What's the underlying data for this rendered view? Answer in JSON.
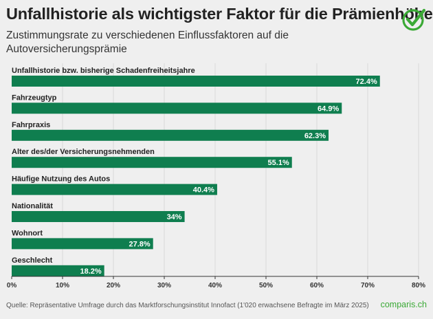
{
  "header": {
    "title": "Unfallhistorie als wichtigster Faktor für die Prämienhöhe",
    "subtitle": "Zustimmungsrate zu verschiedenen Einflussfaktoren auf die Autoversicherungsprämie"
  },
  "footer": {
    "source": "Quelle: Repräsentative Umfrage durch das Marktforschungsinstitut Innofact (1'020 erwachsene Befragte im März 2025)",
    "brand": "comparis.ch"
  },
  "colors": {
    "bar": "#0f7e4f",
    "accent": "#3aa935",
    "background": "#efefef"
  },
  "logo_icon": "checkmark-circle-icon",
  "chart_data": {
    "type": "bar",
    "orientation": "horizontal",
    "categories": [
      "Unfallhistorie bzw. bisherige Schadenfreiheitsjahre",
      "Fahrzeugtyp",
      "Fahrpraxis",
      "Alter des/der Versicherungsnehmenden",
      "Häufige Nutzung des Autos",
      "Nationalität",
      "Wohnort",
      "Geschlecht"
    ],
    "values": [
      72.4,
      64.9,
      62.3,
      55.1,
      40.4,
      34,
      27.8,
      18.2
    ],
    "value_labels": [
      "72.4%",
      "64.9%",
      "62.3%",
      "55.1%",
      "40.4%",
      "34%",
      "27.8%",
      "18.2%"
    ],
    "xlim": [
      0,
      80
    ],
    "xticks": [
      0,
      10,
      20,
      30,
      40,
      50,
      60,
      70,
      80
    ],
    "xtick_labels": [
      "0%",
      "10%",
      "20%",
      "30%",
      "40%",
      "50%",
      "60%",
      "70%",
      "80%"
    ],
    "grid": true
  }
}
